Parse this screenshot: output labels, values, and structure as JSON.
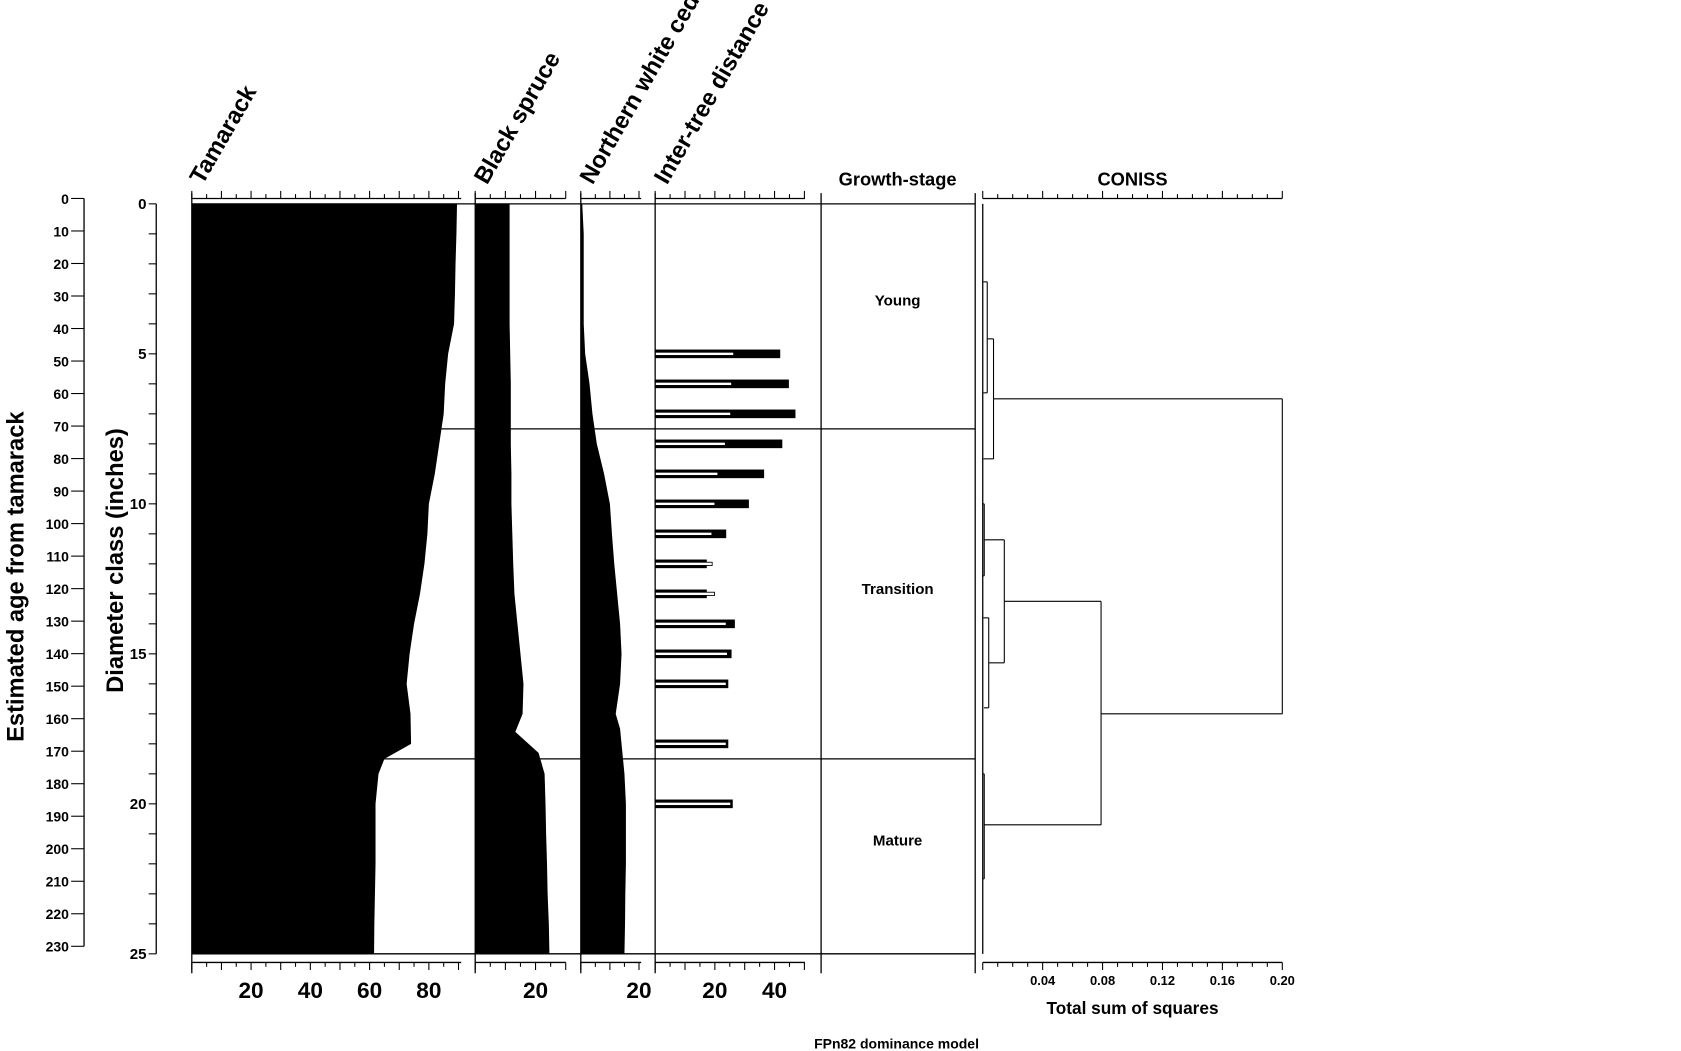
{
  "chart_data": {
    "type": "stratigraphic",
    "footer": "FPn82 dominance model",
    "y_axes": {
      "primary": {
        "label": "Diameter class (inches)",
        "range": [
          0,
          25
        ],
        "ticks": [
          0,
          5,
          10,
          15,
          20,
          25
        ]
      },
      "secondary": {
        "label": "Estimated age from tamarack",
        "range": [
          0,
          230
        ],
        "ticks": [
          0,
          10,
          20,
          30,
          40,
          50,
          60,
          70,
          80,
          90,
          100,
          110,
          120,
          130,
          140,
          150,
          160,
          170,
          180,
          190,
          200,
          210,
          220,
          230
        ]
      }
    },
    "columns": [
      {
        "name": "Tamarack",
        "type": "area",
        "xlim": [
          0,
          91
        ],
        "tick_labels": [
          "20",
          "40",
          "60",
          "80"
        ],
        "tick_values": [
          20,
          40,
          60,
          80
        ],
        "depth": [
          0,
          1,
          2,
          3,
          4,
          5,
          6,
          7,
          8,
          9,
          10,
          11,
          12,
          13,
          14,
          15,
          16,
          17,
          18,
          18.5,
          19,
          20,
          21,
          22,
          23,
          24,
          25
        ],
        "values": [
          89.5,
          89.3,
          89,
          88.8,
          88.5,
          86.5,
          85.5,
          85,
          83.5,
          82,
          80,
          79.5,
          78.5,
          77,
          75,
          73.5,
          72.5,
          73.8,
          74,
          65,
          63,
          62,
          62,
          62,
          61.8,
          61.6,
          61.5
        ]
      },
      {
        "name": "Black spruce",
        "type": "area",
        "xlim": [
          0,
          30
        ],
        "tick_labels": [
          "20"
        ],
        "tick_values": [
          20
        ],
        "depth": [
          0,
          2,
          4,
          5,
          6,
          7,
          8,
          9,
          10,
          11,
          12,
          13,
          14,
          15,
          16,
          17,
          17.6,
          18.3,
          19,
          20,
          21,
          22,
          23,
          24,
          25
        ],
        "values": [
          11.4,
          11.4,
          11.4,
          11.6,
          11.8,
          11.8,
          11.8,
          12,
          12,
          12.3,
          12.6,
          13,
          14,
          15,
          16,
          15.7,
          13.3,
          21,
          23,
          23.3,
          23.5,
          23.8,
          24,
          24.4,
          24.6
        ]
      },
      {
        "name": "Northern white cedar",
        "type": "area",
        "xlim": [
          0,
          20
        ],
        "tick_labels": [
          "20"
        ],
        "tick_values": [
          20
        ],
        "depth": [
          0,
          1,
          2,
          3,
          4,
          5,
          6,
          7,
          8,
          9,
          10,
          11,
          12,
          13,
          14,
          15,
          16,
          17,
          17.5,
          18,
          19,
          20,
          21,
          22,
          23,
          24,
          25
        ],
        "values": [
          0.5,
          1,
          1,
          1,
          1,
          1.5,
          3,
          4,
          5.5,
          8,
          10,
          10.7,
          11.5,
          12.5,
          13.5,
          14,
          13.5,
          12,
          13.5,
          14,
          15,
          15.5,
          15.5,
          15.5,
          15.3,
          15.2,
          15
        ]
      },
      {
        "name": "Inter-tree distance",
        "type": "bar",
        "xlim": [
          0,
          50
        ],
        "tick_labels": [
          "20",
          "40"
        ],
        "tick_values": [
          20,
          40
        ],
        "depth": [
          5,
          6,
          7,
          8,
          9,
          10,
          11,
          12,
          13,
          14,
          15,
          16,
          18,
          20
        ],
        "values": [
          41.9,
          44.8,
          47,
          42.6,
          36.5,
          31.4,
          23.8,
          17.3,
          17.3,
          26.7,
          25.6,
          24.5,
          24.5,
          26
        ],
        "values_secondary": [
          26.3,
          25.6,
          25.3,
          23.5,
          21,
          20,
          19,
          19.1,
          19.9,
          23.8,
          24.2,
          23.8,
          23.8,
          25.3
        ]
      }
    ],
    "growth_stage": {
      "title": "Growth-stage",
      "zones": [
        {
          "label": "Young",
          "from": 0,
          "to": 7.5
        },
        {
          "label": "Transition",
          "from": 7.5,
          "to": 18.5
        },
        {
          "label": "Mature",
          "from": 18.5,
          "to": 25
        }
      ]
    },
    "coniss": {
      "title": "CONISS",
      "xlabel": "Total sum of squares",
      "xlim": [
        0,
        0.2
      ],
      "tick_labels": [
        "0.04",
        "0.08",
        "0.12",
        "0.16",
        "0.20"
      ],
      "tick_values": [
        0.04,
        0.08,
        0.12,
        0.16,
        0.2
      ],
      "nodes": [
        {
          "height": 0.003,
          "left": {
            "depth": 2.6,
            "height": 0.0005
          },
          "right": {
            "depth": 6.3,
            "height": 0.0005
          }
        },
        {
          "height": 0.0072,
          "left": {
            "depth": 4.5,
            "height": 0.003
          },
          "right": {
            "depth": 8.5,
            "height": 0.0005
          }
        },
        {
          "height": 0.001,
          "left": {
            "depth": 10.0,
            "height": 0.0003
          },
          "right": {
            "depth": 12.4,
            "height": 0.0003
          }
        },
        {
          "height": 0.004,
          "left": {
            "depth": 13.8,
            "height": 0.0005
          },
          "right": {
            "depth": 16.8,
            "height": 0.0008
          }
        },
        {
          "height": 0.0144,
          "left": {
            "depth": 11.2,
            "height": 0.001
          },
          "right": {
            "depth": 15.3,
            "height": 0.004
          }
        },
        {
          "height": 0.001,
          "left": {
            "depth": 19.0,
            "height": 0.0003
          },
          "right": {
            "depth": 22.5,
            "height": 0.0003
          }
        },
        {
          "height": 0.079,
          "left": {
            "depth": 13.25,
            "height": 0.0144
          },
          "right": {
            "depth": 20.7,
            "height": 0.001
          }
        },
        {
          "height": 0.2,
          "left": {
            "depth": 6.5,
            "height": 0.0072
          },
          "right": {
            "depth": 17.0,
            "height": 0.079
          }
        }
      ]
    }
  }
}
